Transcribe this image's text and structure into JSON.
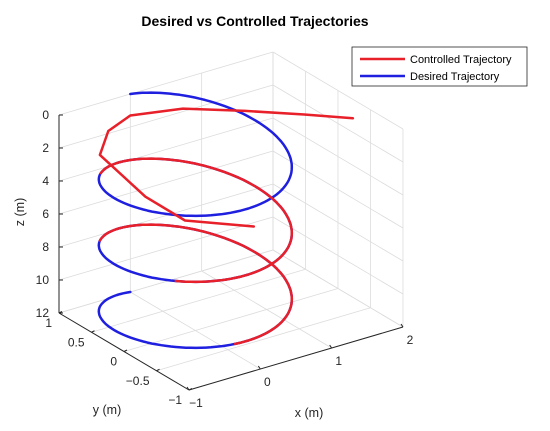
{
  "chart_data": {
    "type": "line",
    "dimensions": 3,
    "title": "Desired vs Controlled Trajectories",
    "xlabel": "x (m)",
    "ylabel": "y (m)",
    "zlabel": "z (m)",
    "xlim": [
      -1,
      2
    ],
    "ylim": [
      -1,
      1
    ],
    "zlim": [
      0,
      12
    ],
    "z_direction": "reversed",
    "x_ticks": [
      -1,
      0,
      1,
      2
    ],
    "y_ticks": [
      -1,
      -0.5,
      0,
      0.5,
      1
    ],
    "z_ticks": [
      0,
      2,
      4,
      6,
      8,
      10,
      12
    ],
    "x_tick_labels": [
      "−1",
      "0",
      "1",
      "2"
    ],
    "y_tick_labels": [
      "−1",
      "−0.5",
      "0",
      "0.5",
      "1"
    ],
    "z_tick_labels": [
      "0",
      "2",
      "4",
      "6",
      "8",
      "10",
      "12"
    ],
    "grid": true,
    "legend_position": "top-right",
    "colors": {
      "controlled": "#e8202a",
      "desired": "#1f1fe0"
    },
    "series": [
      {
        "name": "Controlled Trajectory",
        "color": "#e8202a",
        "description": "Starts near x≈2, z≈2, sweeps to the helix and follows the desired trajectory",
        "points": [
          {
            "x": 2.3,
            "y": 0.1,
            "z": 2.3
          },
          {
            "x": 1.8,
            "y": 0.3,
            "z": 1.9
          },
          {
            "x": 1.2,
            "y": 0.55,
            "z": 1.5
          },
          {
            "x": 0.6,
            "y": 0.85,
            "z": 1.3
          },
          {
            "x": 0.0,
            "y": 1.0,
            "z": 1.3
          },
          {
            "x": -0.4,
            "y": 0.9,
            "z": 1.5
          },
          {
            "x": -0.7,
            "y": 0.7,
            "z": 2.1
          },
          {
            "x": -0.7,
            "y": 0.0,
            "z": 3.0
          },
          {
            "x": -0.6,
            "y": -0.5,
            "z": 3.4
          },
          {
            "x": 0.0,
            "y": -0.9,
            "z": 3.6
          }
        ]
      },
      {
        "name": "Desired Trajectory",
        "color": "#1f1fe0",
        "description": "Helix of radius ~1 descending from z=0 to z=12 (approximately three turns)",
        "helix": {
          "radius": 1.0,
          "z_start": 0,
          "z_end": 12,
          "turns": 3
        }
      }
    ]
  }
}
